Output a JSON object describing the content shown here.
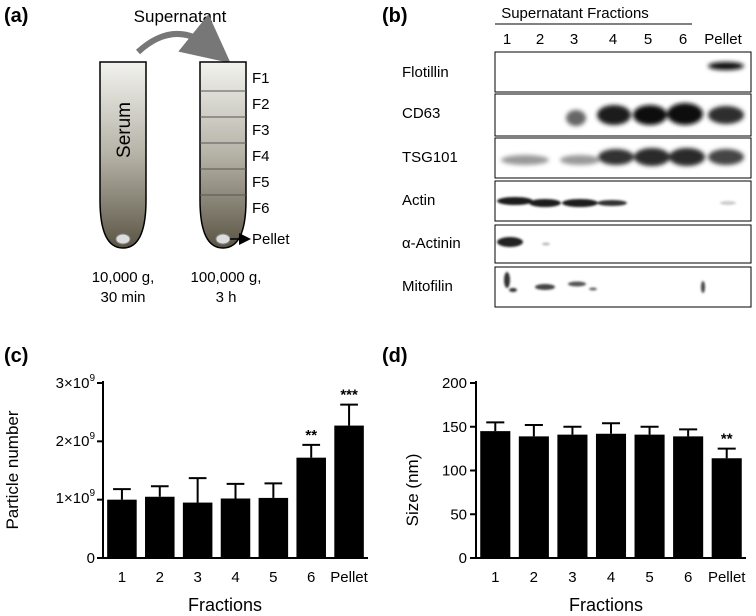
{
  "panels": {
    "a": {
      "letter": "(a)",
      "transfer_label": "Supernatant",
      "tube1_label": "Serum",
      "fractions": [
        "F1",
        "F2",
        "F3",
        "F4",
        "F5",
        "F6"
      ],
      "pellet_label": "Pellet",
      "spin1_line1": "10,000 g,",
      "spin1_line2": "30 min",
      "spin2_line1": "100,000 g,",
      "spin2_line2": "3 h"
    },
    "b": {
      "letter": "(b)",
      "header": "Supernatant Fractions",
      "lanes": [
        "1",
        "2",
        "3",
        "4",
        "5",
        "6",
        "Pellet"
      ],
      "blots": [
        "Flotillin",
        "CD63",
        "TSG101",
        "Actin",
        "α-Actinin",
        "Mitofilin"
      ]
    },
    "c": {
      "letter": "(c)",
      "ylabel": "Particle number",
      "xlabel": "Fractions",
      "ytick_mantissas": [
        "0",
        "1×10",
        "2×10",
        "3×10"
      ],
      "ytick_exp": "9"
    },
    "d": {
      "letter": "(d)",
      "ylabel": "Size (nm)",
      "xlabel": "Fractions",
      "yticks": [
        "0",
        "50",
        "100",
        "150",
        "200"
      ]
    }
  },
  "chart_data": [
    {
      "type": "bar",
      "panel": "c",
      "title": "",
      "xlabel": "Fractions",
      "ylabel": "Particle number",
      "categories": [
        "1",
        "2",
        "3",
        "4",
        "5",
        "6",
        "Pellet"
      ],
      "values": [
        1000000000,
        1050000000,
        950000000,
        1020000000,
        1030000000,
        1720000000,
        2270000000
      ],
      "errors": [
        180000000,
        180000000,
        420000000,
        250000000,
        250000000,
        220000000,
        360000000
      ],
      "significance": [
        "",
        "",
        "",
        "",
        "",
        "**",
        "***"
      ],
      "ylim": [
        0,
        3000000000
      ],
      "yticks": [
        0,
        1000000000,
        2000000000,
        3000000000
      ],
      "color": "#000000"
    },
    {
      "type": "bar",
      "panel": "d",
      "title": "",
      "xlabel": "Fractions",
      "ylabel": "Size (nm)",
      "categories": [
        "1",
        "2",
        "3",
        "4",
        "5",
        "6",
        "Pellet"
      ],
      "values": [
        145,
        139,
        141,
        142,
        141,
        139,
        114
      ],
      "errors": [
        10,
        13,
        9,
        12,
        9,
        8,
        11
      ],
      "significance": [
        "",
        "",
        "",
        "",
        "",
        "",
        "**"
      ],
      "ylim": [
        0,
        200
      ],
      "yticks": [
        0,
        50,
        100,
        150,
        200
      ],
      "color": "#000000"
    }
  ]
}
